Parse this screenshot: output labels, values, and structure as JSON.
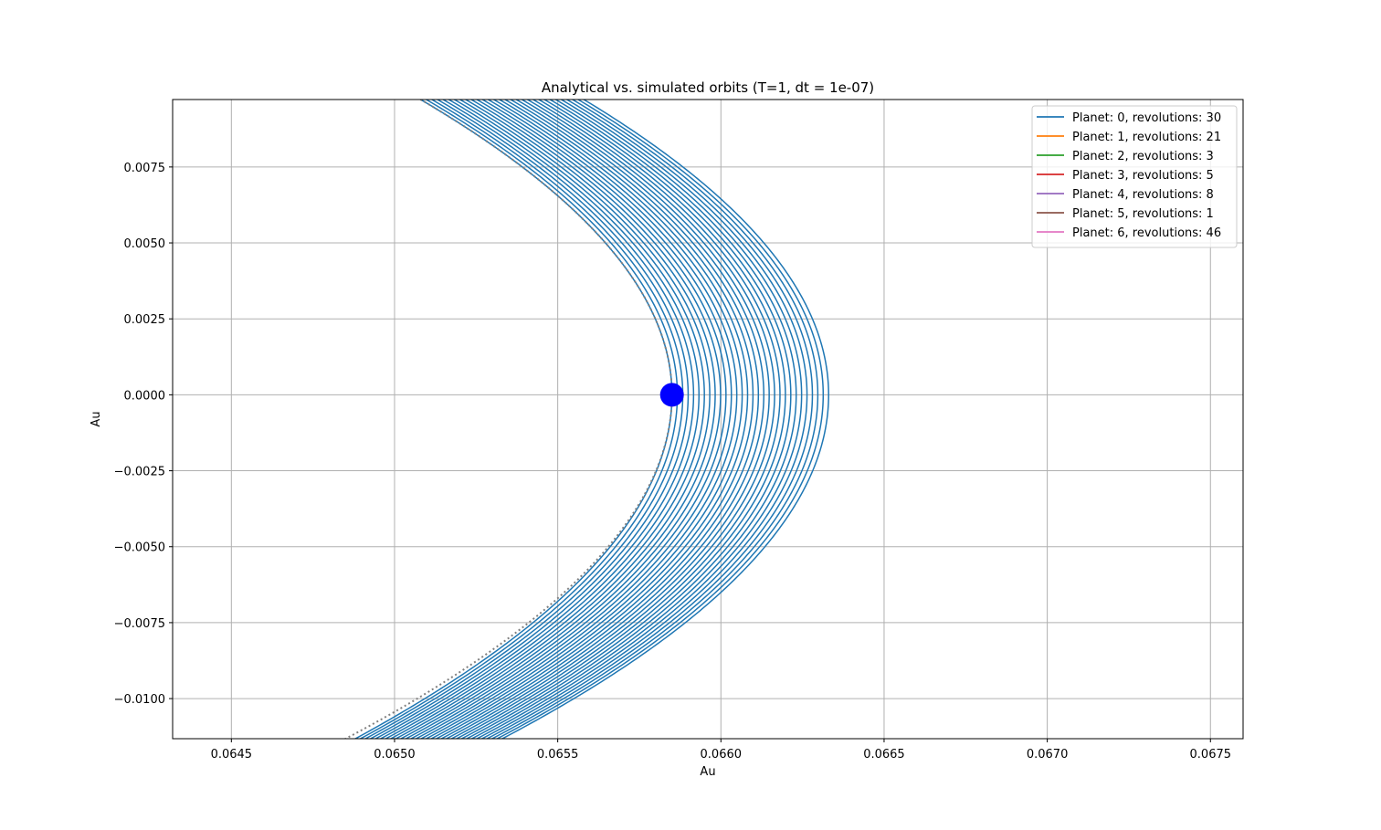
{
  "chart_data": {
    "type": "line",
    "title": "Analytical vs. simulated orbits (T=1, dt = 1e-07)",
    "xlabel": "Au",
    "ylabel": "Au",
    "xlim": [
      0.06432,
      0.0676
    ],
    "ylim": [
      -0.01132,
      0.00972
    ],
    "x_ticks": [
      0.0645,
      0.065,
      0.0655,
      0.066,
      0.0665,
      0.067,
      0.0675
    ],
    "x_tick_labels": [
      "0.0645",
      "0.0650",
      "0.0655",
      "0.0660",
      "0.0665",
      "0.0670",
      "0.0675"
    ],
    "y_ticks": [
      -0.01,
      -0.0075,
      -0.005,
      -0.0025,
      0.0,
      0.0025,
      0.005,
      0.0075
    ],
    "y_tick_labels": [
      "−0.0100",
      "−0.0075",
      "−0.0050",
      "−0.0025",
      "0.0000",
      "0.0025",
      "0.0050",
      "0.0075"
    ],
    "grid": true,
    "legend_position": "top-right",
    "series": [
      {
        "name": "Planet: 0, revolutions: 30",
        "color": "#1f77b4"
      },
      {
        "name": "Planet: 1, revolutions: 21",
        "color": "#ff7f0e"
      },
      {
        "name": "Planet: 2, revolutions: 3",
        "color": "#2ca02c"
      },
      {
        "name": "Planet: 3, revolutions: 5",
        "color": "#d62728"
      },
      {
        "name": "Planet: 4, revolutions: 8",
        "color": "#9467bd"
      },
      {
        "name": "Planet: 5, revolutions: 1",
        "color": "#8c564b"
      },
      {
        "name": "Planet: 6, revolutions: 46",
        "color": "#e377c2"
      }
    ],
    "orbit_family": {
      "count": 30,
      "vertex_x_start": 0.06585,
      "vertex_x_end": 0.06633,
      "top_x_at_ymax_start": 0.06508,
      "top_x_at_ymax_end": 0.06558,
      "bottom_x_at_ymin_start": 0.06488,
      "bottom_x_at_ymin_end": 0.06533,
      "color": "#1f77b4"
    },
    "analytical_orbit": {
      "style": "dotted",
      "color": "#808080",
      "vertex_x": 0.06585,
      "top_x_at_ymax": 0.06508,
      "bottom_x_at_ymin": 0.06485
    },
    "star": {
      "x": 0.06585,
      "y": 0.0,
      "color": "#0000ff"
    }
  }
}
